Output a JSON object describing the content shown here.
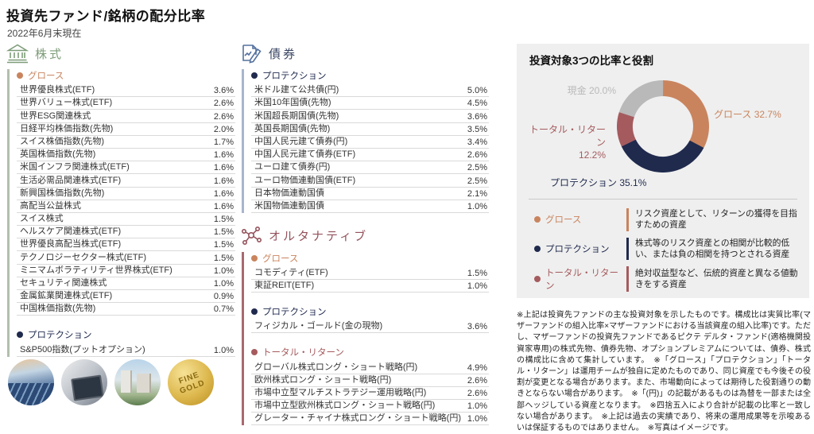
{
  "page": {
    "title": "投資先ファンド/銘柄の配分比率",
    "as_of": "2022年6月末現在"
  },
  "colors": {
    "growth": "#C9845E",
    "protection": "#1F2A4D",
    "total_return": "#A55B5E",
    "cash": "#B9B9B9",
    "stocks_green": "#7D9C78",
    "bonds_blue": "#53719F",
    "alt_maroon": "#94525B"
  },
  "sections": {
    "stocks": {
      "label": "株式",
      "icon": "bank-icon",
      "groups": [
        {
          "key": "growth",
          "name": "グロース",
          "color": "growth",
          "items": [
            {
              "label": "世界優良株式(ETF)",
              "value": "3.6%"
            },
            {
              "label": "世界バリュー株式(ETF)",
              "value": "2.6%"
            },
            {
              "label": "世界ESG関連株式",
              "value": "2.6%"
            },
            {
              "label": "日経平均株価指数(先物)",
              "value": "2.0%"
            },
            {
              "label": "スイス株価指数(先物)",
              "value": "1.7%"
            },
            {
              "label": "英国株価指数(先物)",
              "value": "1.6%"
            },
            {
              "label": "米国インフラ関連株式(ETF)",
              "value": "1.6%"
            },
            {
              "label": "生活必需品関連株式(ETF)",
              "value": "1.6%"
            },
            {
              "label": "新興国株価指数(先物)",
              "value": "1.6%"
            },
            {
              "label": "高配当公益株式",
              "value": "1.6%"
            },
            {
              "label": "スイス株式",
              "value": "1.5%"
            },
            {
              "label": "ヘルスケア関連株式(ETF)",
              "value": "1.5%"
            },
            {
              "label": "世界優良高配当株式(ETF)",
              "value": "1.5%"
            },
            {
              "label": "テクノロジーセクター株式(ETF)",
              "value": "1.5%"
            },
            {
              "label": "ミニマムボラティリティ世界株式(ETF)",
              "value": "1.0%"
            },
            {
              "label": "セキュリティ関連株式",
              "value": "1.0%"
            },
            {
              "label": "金属鉱業関連株式(ETF)",
              "value": "0.9%"
            },
            {
              "label": "中国株価指数(先物)",
              "value": "0.7%"
            }
          ]
        },
        {
          "key": "protection",
          "name": "プロテクション",
          "color": "protection",
          "items": [
            {
              "label": "S&P500指数(プットオプション)",
              "value": "1.0%"
            }
          ]
        }
      ]
    },
    "bonds": {
      "label": "債券",
      "icon": "bond-document-icon",
      "groups": [
        {
          "key": "protection",
          "name": "プロテクション",
          "color": "protection",
          "items": [
            {
              "label": "米ドル建て公共債(円)",
              "value": "5.0%"
            },
            {
              "label": "米国10年国債(先物)",
              "value": "4.5%"
            },
            {
              "label": "米国超長期国債(先物)",
              "value": "3.6%"
            },
            {
              "label": "英国長期国債(先物)",
              "value": "3.5%"
            },
            {
              "label": "中国人民元建て債券(円)",
              "value": "3.4%"
            },
            {
              "label": "中国人民元建て債券(ETF)",
              "value": "2.6%"
            },
            {
              "label": "ユーロ建て債券(円)",
              "value": "2.5%"
            },
            {
              "label": "ユーロ物価連動国債(ETF)",
              "value": "2.5%"
            },
            {
              "label": "日本物価連動国債",
              "value": "2.1%"
            },
            {
              "label": "米国物価連動国債",
              "value": "1.0%"
            }
          ]
        }
      ]
    },
    "alternatives": {
      "label": "オルタナティブ",
      "icon": "molecule-icon",
      "groups": [
        {
          "key": "growth",
          "name": "グロース",
          "color": "growth",
          "items": [
            {
              "label": "コモディティ(ETF)",
              "value": "1.5%"
            },
            {
              "label": "東証REIT(ETF)",
              "value": "1.0%"
            }
          ]
        },
        {
          "key": "protection",
          "name": "プロテクション",
          "color": "protection",
          "items": [
            {
              "label": "フィジカル・ゴールド(金の現物)",
              "value": "3.6%"
            }
          ]
        },
        {
          "key": "total-return",
          "name": "トータル・リターン",
          "color": "total_return",
          "items": [
            {
              "label": "グローバル株式ロング・ショート戦略(円)",
              "value": "4.9%"
            },
            {
              "label": "欧州株式ロング・ショート戦略(円)",
              "value": "2.6%"
            },
            {
              "label": "市場中立型マルチストラテジー運用戦略(円)",
              "value": "2.6%"
            },
            {
              "label": "市場中立型欧州株式ロング・ショート戦略(円)",
              "value": "1.0%"
            },
            {
              "label": "グレーター・チャイナ株式ロング・ショート戦略(円)",
              "value": "1.0%"
            }
          ]
        }
      ]
    }
  },
  "panel": {
    "title": "投資対象3つの比率と役割",
    "labels": {
      "cash": "現金 20.0%",
      "growth": "グロース 32.7%",
      "total_return_line1": "トータル・リターン",
      "total_return_line2": "12.2%",
      "protection": "プロテクション 35.1%"
    },
    "legend": [
      {
        "label": "グロース",
        "color": "growth",
        "desc": "リスク資産として、リターンの獲得を目指すための資産"
      },
      {
        "label": "プロテクション",
        "color": "protection",
        "desc": "株式等のリスク資産との相関が比較的低い、または負の相関を持つとされる資産"
      },
      {
        "label": "トータル・リターン",
        "color": "total_return",
        "desc": "絶対収益型など、伝統的資産と異なる値動きをする資産"
      }
    ]
  },
  "chart_data": {
    "type": "pie",
    "subtype": "donut",
    "title": "投資対象3つの比率と役割",
    "categories": [
      "グロース",
      "プロテクション",
      "トータル・リターン",
      "現金"
    ],
    "values": [
      32.7,
      35.1,
      12.2,
      20.0
    ],
    "colors": [
      "#C9845E",
      "#1F2A4D",
      "#A55B5E",
      "#B9B9B9"
    ],
    "start_angle": "top",
    "direction": "clockwise",
    "legend_position": "outside-callouts"
  },
  "photos": [
    {
      "name": "solar-panels-photo"
    },
    {
      "name": "tablet-financial-data-photo"
    },
    {
      "name": "apartment-buildings-photo"
    },
    {
      "name": "gold-bar-photo",
      "text": "FINE GOLD"
    }
  ],
  "disclaimer": "※上記は投資先ファンドの主な投資対象を示したものです。構成比は実質比率(マザーファンドの組入比率×マザーファンドにおける当該資産の組入比率)です。ただし、マザーファンドの投資先ファンドであるピクテ デルタ・ファンド(適格機関投資家専用)の株式先物、債券先物、オプションプレミアムについては、債券、株式の構成比に含めて集計しています。　※「グロース」「プロテクション」「トータル・リターン」は運用チームが独自に定めたものであり、同じ資産でも今後その役割が変更となる場合があります。また、市場動向によっては期待した役割通りの動きとならない場合があります。　※「(円)」の記載があるものは為替を一部または全部ヘッジしている資産となります。　※四捨五入により合計が記載の比率と一致しない場合があります。　※上記は過去の実績であり、将来の運用成果等を示唆あるいは保証するものではありません。　※写真はイメージです。"
}
